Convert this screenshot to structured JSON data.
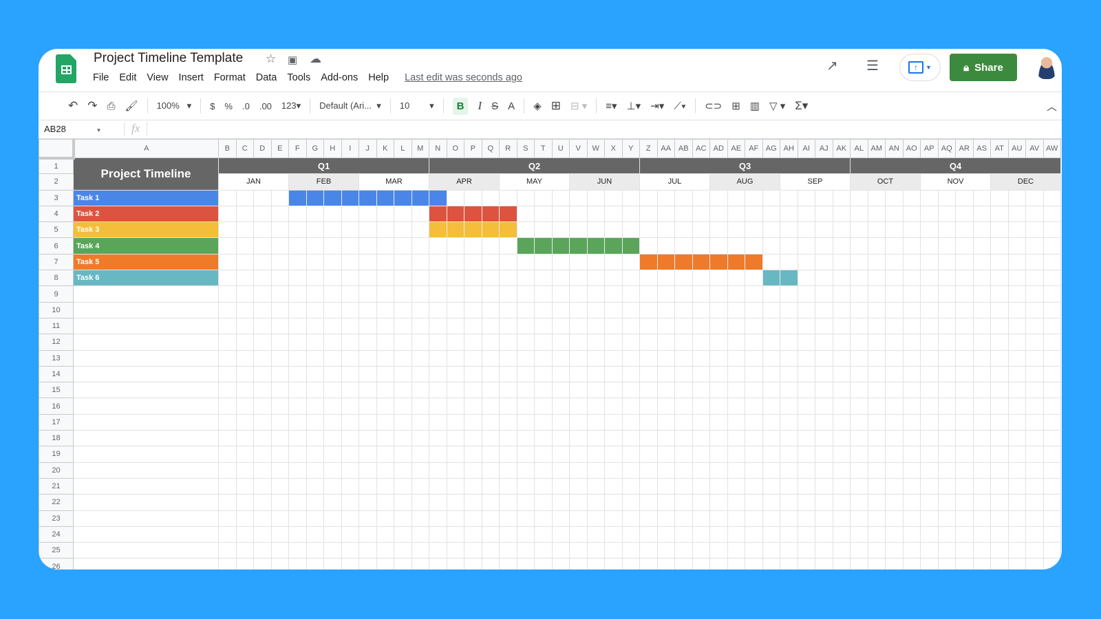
{
  "app": {
    "title": "Project Timeline Template",
    "last_edit": "Last edit was seconds ago",
    "share_label": "Share",
    "menu": [
      "File",
      "Edit",
      "View",
      "Insert",
      "Format",
      "Data",
      "Tools",
      "Add-ons",
      "Help"
    ]
  },
  "toolbar": {
    "zoom": "100%",
    "currency": "$",
    "percent": "%",
    "dec_less": ".0",
    "dec_more": ".00",
    "format": "123",
    "font": "Default (Ari...",
    "font_size": "10",
    "bold": "B",
    "italic": "I",
    "strike": "S",
    "text_color": "A"
  },
  "formula_bar": {
    "name_box": "AB28",
    "fx": "fx",
    "value": ""
  },
  "sheet": {
    "selected_column": "AB",
    "columns": [
      "A",
      "B",
      "C",
      "D",
      "E",
      "F",
      "G",
      "H",
      "I",
      "J",
      "K",
      "L",
      "M",
      "N",
      "O",
      "P",
      "Q",
      "R",
      "S",
      "T",
      "U",
      "V",
      "W",
      "X",
      "Y",
      "Z",
      "AA",
      "AB",
      "AC",
      "AD",
      "AE",
      "AF",
      "AG",
      "AH",
      "AI",
      "AJ",
      "AK",
      "AL",
      "AM",
      "AN",
      "AO",
      "AP",
      "AQ",
      "AR",
      "AS",
      "AT",
      "AU",
      "AV",
      "AW"
    ],
    "row_count": 26,
    "header_title": "Project Timeline",
    "quarters": [
      "Q1",
      "Q2",
      "Q3",
      "Q4"
    ],
    "months": [
      "JAN",
      "FEB",
      "MAR",
      "APR",
      "MAY",
      "JUN",
      "JUL",
      "AUG",
      "SEP",
      "OCT",
      "NOV",
      "DEC"
    ],
    "header_color": "#666666",
    "alt_month_color": "#ebebeb",
    "tasks": [
      {
        "name": "Task 1",
        "color": "#4a86e8",
        "start": "F",
        "end": "N"
      },
      {
        "name": "Task 2",
        "color": "#dc5440",
        "start": "N",
        "end": "R"
      },
      {
        "name": "Task 3",
        "color": "#f4bd3a",
        "start": "N",
        "end": "R"
      },
      {
        "name": "Task 4",
        "color": "#5aa55a",
        "start": "S",
        "end": "Y"
      },
      {
        "name": "Task 5",
        "color": "#ef7a2a",
        "start": "Z",
        "end": "AF"
      },
      {
        "name": "Task 6",
        "color": "#67b8c3",
        "start": "AG",
        "end": "AH"
      }
    ]
  }
}
